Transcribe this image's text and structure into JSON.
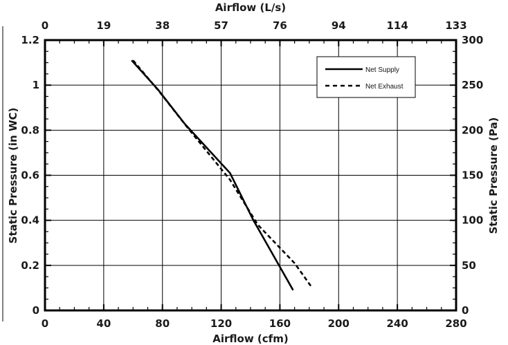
{
  "chart_data": {
    "type": "line",
    "x_top_label": "Airflow (L/s)",
    "x_bottom_label": "Airflow (cfm)",
    "y_left_label": "Static Pressure (in WC)",
    "y_right_label": "Static Pressure (Pa)",
    "x_bottom_range": [
      0,
      280
    ],
    "y_left_range": [
      0,
      1.2
    ],
    "x_bottom_ticks": [
      "0",
      "40",
      "80",
      "120",
      "160",
      "200",
      "240",
      "280"
    ],
    "y_left_ticks": [
      "0",
      "0.2",
      "0.4",
      "0.6",
      "0.8",
      "1",
      "1.2"
    ],
    "x_top_ticks": [
      "0",
      "19",
      "38",
      "57",
      "76",
      "94",
      "114",
      "133"
    ],
    "y_right_ticks": [
      "0",
      "50",
      "100",
      "150",
      "200",
      "250",
      "300"
    ],
    "grid": true,
    "legend_position": "top-right",
    "series": [
      {
        "name": "Net Supply",
        "style": "solid",
        "points": [
          [
            59,
            1.11
          ],
          [
            77,
            0.98
          ],
          [
            95,
            0.83
          ],
          [
            126,
            0.61
          ],
          [
            142,
            0.4
          ],
          [
            169,
            0.09
          ]
        ]
      },
      {
        "name": "Net Exhaust",
        "style": "dashed",
        "points": [
          [
            60,
            1.11
          ],
          [
            78,
            0.97
          ],
          [
            96,
            0.82
          ],
          [
            126,
            0.58
          ],
          [
            145,
            0.38
          ],
          [
            170,
            0.21
          ],
          [
            182,
            0.1
          ]
        ]
      }
    ]
  }
}
